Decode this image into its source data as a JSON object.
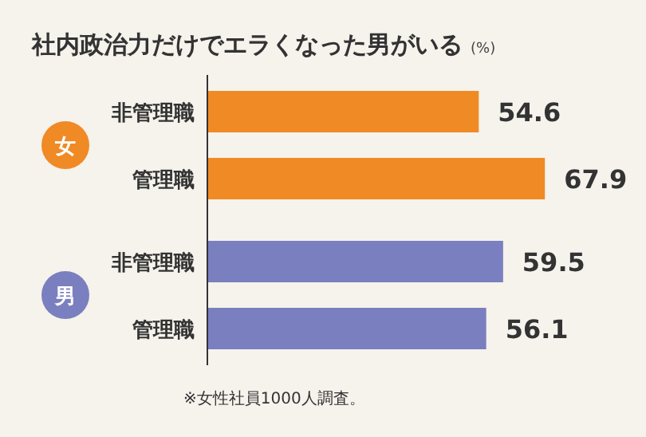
{
  "chart_data": {
    "type": "bar",
    "orientation": "horizontal",
    "title": "社内政治力だけでエラくなった男がいる",
    "subtitle": "(%)",
    "categories": [
      "非管理職",
      "管理職",
      "非管理職",
      "管理職"
    ],
    "series": [
      {
        "name": "女",
        "color": "#f08a24",
        "values": [
          54.6,
          67.9,
          null,
          null
        ]
      },
      {
        "name": "男",
        "color": "#7a7fbf",
        "values": [
          null,
          null,
          59.5,
          56.1
        ]
      }
    ],
    "data_labels": true,
    "annotations": [
      "※女性社員1000人調査。"
    ]
  }
}
